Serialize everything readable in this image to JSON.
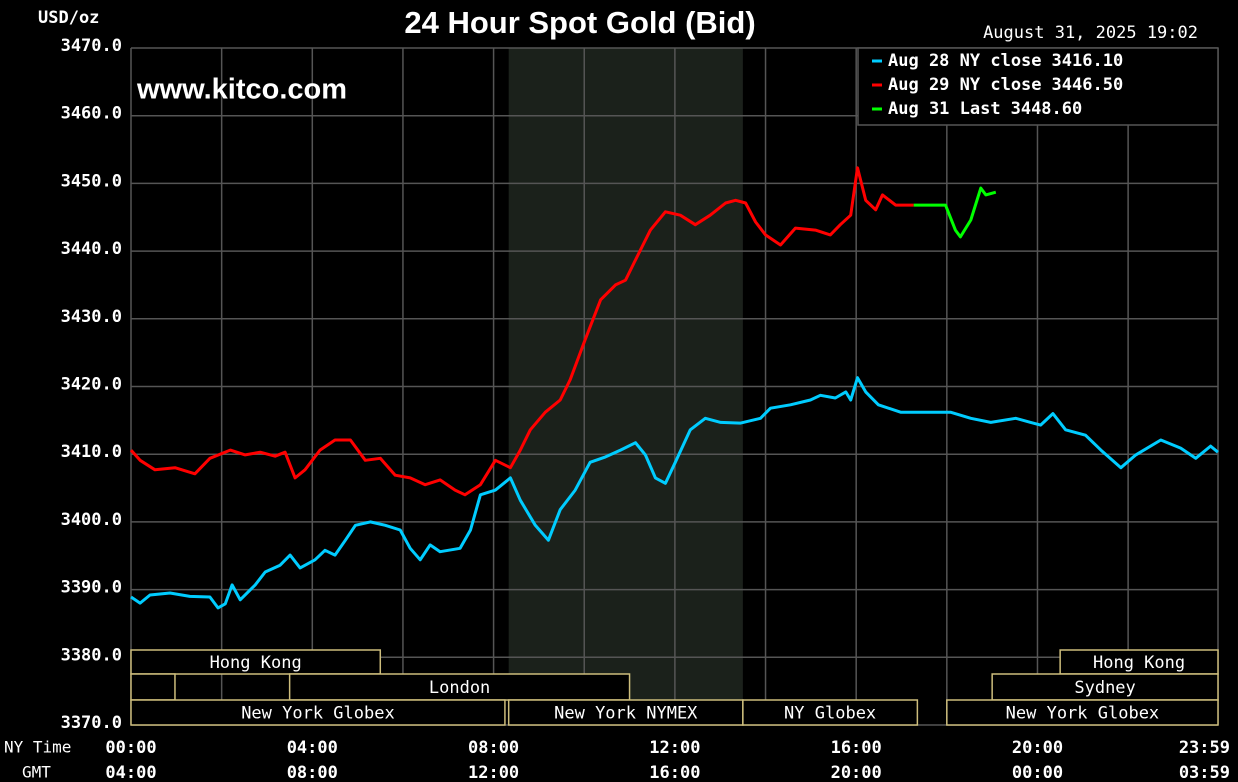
{
  "chart_data": {
    "type": "line",
    "title": "24 Hour Spot Gold (Bid)",
    "ylabel": "USD/oz",
    "timestamp": "August 31, 2025 19:02",
    "watermark": "www.kitco.com",
    "xlabel": "NY Time",
    "x2label": "GMT",
    "xlim": [
      0,
      23.983
    ],
    "ylim": [
      3370,
      3470
    ],
    "xticks": [
      {
        "value": 0,
        "label": "00:00"
      },
      {
        "value": 4,
        "label": "04:00"
      },
      {
        "value": 8,
        "label": "08:00"
      },
      {
        "value": 12,
        "label": "12:00"
      },
      {
        "value": 16,
        "label": "16:00"
      },
      {
        "value": 20,
        "label": "20:00"
      },
      {
        "value": 23.983,
        "label": "23:59"
      }
    ],
    "x2ticks": [
      {
        "value": 0,
        "label": "04:00"
      },
      {
        "value": 4,
        "label": "08:00"
      },
      {
        "value": 8,
        "label": "12:00"
      },
      {
        "value": 12,
        "label": "16:00"
      },
      {
        "value": 16,
        "label": "20:00"
      },
      {
        "value": 20,
        "label": "00:00"
      },
      {
        "value": 23.983,
        "label": "03:59"
      }
    ],
    "x_minor_ticks": [
      2,
      6,
      10,
      14,
      18,
      22
    ],
    "yticks": [
      {
        "value": 3370,
        "label": "3370.0"
      },
      {
        "value": 3380,
        "label": "3380.0"
      },
      {
        "value": 3390,
        "label": "3390.0"
      },
      {
        "value": 3400,
        "label": "3400.0"
      },
      {
        "value": 3410,
        "label": "3410.0"
      },
      {
        "value": 3420,
        "label": "3420.0"
      },
      {
        "value": 3430,
        "label": "3430.0"
      },
      {
        "value": 3440,
        "label": "3440.0"
      },
      {
        "value": 3450,
        "label": "3450.0"
      },
      {
        "value": 3460,
        "label": "3460.0"
      },
      {
        "value": 3470,
        "label": "3470.0"
      }
    ],
    "grid": true,
    "legend": "top-right",
    "shaded_region": [
      8.333,
      13.5
    ],
    "series": [
      {
        "name": "Aug 28 NY close",
        "close": 3416.1,
        "close_label": "3416.10",
        "color": "#00ccff",
        "x": [
          0,
          0.2,
          0.42,
          0.86,
          1.3,
          1.74,
          1.92,
          2.08,
          2.23,
          2.41,
          2.74,
          2.96,
          3.29,
          3.51,
          3.73,
          4.06,
          4.28,
          4.5,
          4.73,
          4.95,
          5.28,
          5.61,
          5.94,
          6.16,
          6.38,
          6.6,
          6.82,
          7.26,
          7.49,
          7.71,
          8.04,
          8.37,
          8.59,
          8.92,
          9.21,
          9.47,
          9.8,
          10.13,
          10.47,
          10.8,
          11.13,
          11.35,
          11.57,
          11.79,
          12.01,
          12.34,
          12.67,
          13.01,
          13.45,
          13.89,
          14.11,
          14.55,
          14.99,
          15.21,
          15.54,
          15.77,
          15.88,
          16.03,
          16.21,
          16.49,
          16.98,
          18.08,
          18.53,
          18.97,
          19.52,
          19.85,
          20.07,
          20.34,
          20.62,
          21.06,
          21.4,
          21.84,
          22.17,
          22.72,
          23.16,
          23.49,
          23.82,
          23.98
        ],
        "values": [
          3388.9,
          3388.0,
          3389.2,
          3389.5,
          3389.0,
          3388.9,
          3387.3,
          3387.9,
          3390.7,
          3388.5,
          3390.7,
          3392.6,
          3393.6,
          3395.1,
          3393.2,
          3394.4,
          3395.8,
          3395.1,
          3397.3,
          3399.5,
          3400.0,
          3399.5,
          3398.8,
          3396.1,
          3394.4,
          3396.6,
          3395.6,
          3396.1,
          3398.8,
          3404.0,
          3404.7,
          3406.5,
          3403.2,
          3399.5,
          3397.3,
          3401.8,
          3404.7,
          3408.8,
          3409.6,
          3410.6,
          3411.7,
          3409.9,
          3406.5,
          3405.7,
          3408.8,
          3413.6,
          3415.3,
          3414.7,
          3414.6,
          3415.3,
          3416.8,
          3417.3,
          3418.0,
          3418.7,
          3418.3,
          3419.2,
          3418.0,
          3421.3,
          3419.2,
          3417.3,
          3416.2,
          3416.2,
          3415.3,
          3414.7,
          3415.3,
          3414.7,
          3414.3,
          3416.0,
          3413.6,
          3412.8,
          3410.6,
          3408.0,
          3409.9,
          3412.1,
          3410.9,
          3409.4,
          3411.2,
          3410.3
        ]
      },
      {
        "name": "Aug 29 NY close",
        "close": 3446.5,
        "close_label": "3446.50",
        "color": "#ff0000",
        "x": [
          0,
          0.2,
          0.53,
          0.97,
          1.41,
          1.74,
          2.19,
          2.52,
          2.85,
          3.18,
          3.4,
          3.62,
          3.84,
          4.17,
          4.5,
          4.84,
          5.17,
          5.5,
          5.83,
          6.16,
          6.49,
          6.82,
          7.15,
          7.37,
          7.71,
          8.04,
          8.37,
          8.59,
          8.81,
          9.14,
          9.47,
          9.69,
          10.02,
          10.36,
          10.69,
          10.91,
          11.13,
          11.46,
          11.79,
          12.12,
          12.45,
          12.78,
          13.12,
          13.34,
          13.56,
          13.78,
          14.0,
          14.33,
          14.66,
          15.1,
          15.43,
          15.65,
          15.88,
          16.03,
          16.21,
          16.43,
          16.58,
          16.87,
          17.27
        ],
        "values": [
          3410.6,
          3409.1,
          3407.7,
          3408.0,
          3407.1,
          3409.4,
          3410.6,
          3409.9,
          3410.3,
          3409.7,
          3410.3,
          3406.5,
          3407.7,
          3410.6,
          3412.1,
          3412.1,
          3409.1,
          3409.4,
          3406.9,
          3406.5,
          3405.5,
          3406.2,
          3404.7,
          3404.0,
          3405.5,
          3409.1,
          3408.0,
          3410.6,
          3413.6,
          3416.2,
          3418.0,
          3421.0,
          3426.9,
          3432.8,
          3435.0,
          3435.7,
          3438.7,
          3443.1,
          3445.8,
          3445.3,
          3443.9,
          3445.3,
          3447.1,
          3447.5,
          3447.1,
          3444.3,
          3442.4,
          3440.9,
          3443.4,
          3443.1,
          3442.4,
          3443.9,
          3445.3,
          3452.3,
          3447.5,
          3446.1,
          3448.3,
          3446.8,
          3446.8
        ]
      },
      {
        "name": "Aug 31 Last",
        "close": 3448.6,
        "close_label": "3448.60",
        "color": "#00ff00",
        "x": [
          17.27,
          17.97,
          18.19,
          18.3,
          18.53,
          18.75,
          18.86,
          19.08
        ],
        "values": [
          3446.8,
          3446.8,
          3443.1,
          3442.1,
          3444.6,
          3449.3,
          3448.3,
          3448.7
        ]
      }
    ],
    "sessions": [
      {
        "name": "Hong Kong",
        "row": 0,
        "start": 0,
        "end": 5.5
      },
      {
        "name": "Hong Kong",
        "row": 0,
        "start": 20.5,
        "end": 23.983
      },
      {
        "name": null,
        "row": 1,
        "start": 0,
        "end": 0.97
      },
      {
        "name": "London",
        "row": 1,
        "start": 3.5,
        "end": 11
      },
      {
        "name": "Sydney",
        "row": 1,
        "start": 19,
        "end": 23.983
      },
      {
        "name": "New York Globex",
        "row": 2,
        "start": 0,
        "end": 8.25
      },
      {
        "name": "New York NYMEX",
        "row": 2,
        "start": 8.333,
        "end": 13.5
      },
      {
        "name": "NY Globex",
        "row": 2,
        "start": 13.5,
        "end": 17.35
      },
      {
        "name": "New York Globex",
        "row": 2,
        "start": 18,
        "end": 23.983
      }
    ]
  }
}
